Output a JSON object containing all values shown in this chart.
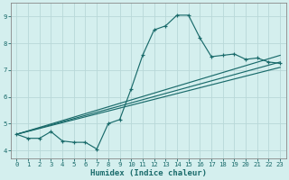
{
  "title": "",
  "xlabel": "Humidex (Indice chaleur)",
  "ylabel": "",
  "bg_color": "#d4efee",
  "grid_color": "#b8d8d8",
  "line_color": "#1a6b6b",
  "xlim": [
    -0.5,
    23.5
  ],
  "ylim": [
    3.7,
    9.5
  ],
  "xticks": [
    0,
    1,
    2,
    3,
    4,
    5,
    6,
    7,
    8,
    9,
    10,
    11,
    12,
    13,
    14,
    15,
    16,
    17,
    18,
    19,
    20,
    21,
    22,
    23
  ],
  "yticks": [
    4,
    5,
    6,
    7,
    8,
    9
  ],
  "series": [
    [
      0,
      4.6
    ],
    [
      1,
      4.45
    ],
    [
      2,
      4.45
    ],
    [
      3,
      4.7
    ],
    [
      4,
      4.35
    ],
    [
      5,
      4.3
    ],
    [
      6,
      4.3
    ],
    [
      7,
      4.05
    ],
    [
      8,
      5.0
    ],
    [
      9,
      5.15
    ],
    [
      10,
      6.3
    ],
    [
      11,
      7.55
    ],
    [
      12,
      8.5
    ],
    [
      13,
      8.65
    ],
    [
      14,
      9.05
    ],
    [
      15,
      9.05
    ],
    [
      16,
      8.2
    ],
    [
      17,
      7.5
    ],
    [
      18,
      7.55
    ],
    [
      19,
      7.6
    ],
    [
      20,
      7.4
    ],
    [
      21,
      7.45
    ],
    [
      22,
      7.3
    ],
    [
      23,
      7.25
    ]
  ],
  "line2": [
    [
      0,
      4.6
    ],
    [
      23,
      7.55
    ]
  ],
  "line3": [
    [
      0,
      4.6
    ],
    [
      23,
      7.1
    ]
  ],
  "line4": [
    [
      0,
      4.6
    ],
    [
      23,
      7.3
    ]
  ]
}
